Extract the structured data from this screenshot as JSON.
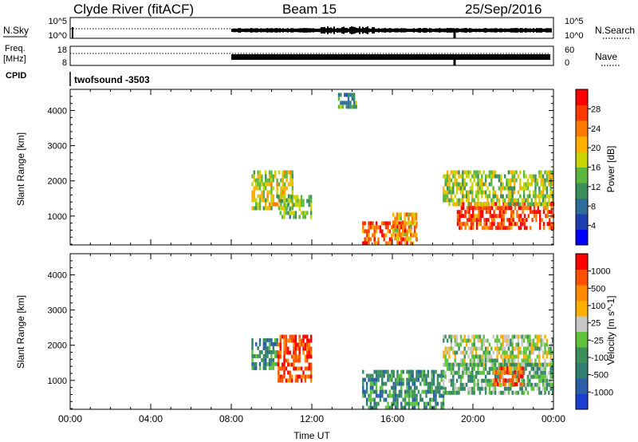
{
  "header": {
    "station": "Clyde River (fitACF)",
    "beam": "Beam 15",
    "date": "25/Sep/2016"
  },
  "status_panels": {
    "nsky_label": "N.Sky",
    "nsky_top_tick": "10^5",
    "nsky_bottom_tick": "10^0",
    "nsearch_label": "N.Search",
    "nsearch_top_tick": "10^5",
    "nsearch_bottom_tick": "10^0",
    "freq_label_line1": "Freq.",
    "freq_label_line2": "[MHz]",
    "freq_top_tick": "18",
    "freq_bottom_tick": "8",
    "nave_label": "Nave",
    "nave_top_tick": "60",
    "nave_bottom_tick": "0",
    "cpid_label": "CPID",
    "cpid_value": "twofsound  -3503"
  },
  "colors": {
    "power_scale": [
      "#0000ff",
      "#1f3fb0",
      "#2f6e9a",
      "#3a8f5a",
      "#5cb83c",
      "#c8d400",
      "#ffb000",
      "#ff7a00",
      "#ff3a00",
      "#ff0000"
    ],
    "velocity_scale": [
      "#1a3fd0",
      "#2a5fa8",
      "#2f7e70",
      "#3a8f5a",
      "#5ec23a",
      "#c8c8c8",
      "#ffb000",
      "#ff8a00",
      "#ff5000",
      "#ff0000"
    ]
  },
  "chart_data": [
    {
      "name": "power",
      "type": "heatmap",
      "title": "",
      "xlabel": "",
      "ylabel": "Slant Range [km]",
      "x_ticks": [
        "00:00",
        "04:00",
        "08:00",
        "12:00",
        "16:00",
        "20:00",
        "00:00"
      ],
      "xlim_hours": [
        0,
        24
      ],
      "ylim": [
        180,
        4600
      ],
      "y_ticks": [
        "1000",
        "2000",
        "3000",
        "4000"
      ],
      "colorbar": {
        "label": "Power [dB]",
        "ticks": [
          "4",
          "8",
          "12",
          "16",
          "20",
          "24",
          "28"
        ]
      },
      "regions": [
        {
          "t0": 9.0,
          "t1": 11.0,
          "r0": 1200,
          "r1": 2300,
          "level": 0.55
        },
        {
          "t0": 10.3,
          "t1": 12.0,
          "r0": 1000,
          "r1": 1600,
          "level": 0.45
        },
        {
          "t0": 14.5,
          "t1": 17.2,
          "r0": 250,
          "r1": 850,
          "level": 0.8
        },
        {
          "t0": 16.0,
          "t1": 17.2,
          "r0": 400,
          "r1": 1100,
          "level": 0.65
        },
        {
          "t0": 19.2,
          "t1": 24.0,
          "r0": 700,
          "r1": 1400,
          "level": 0.85
        },
        {
          "t0": 18.5,
          "t1": 24.0,
          "r0": 1300,
          "r1": 2300,
          "level": 0.5
        },
        {
          "t0": 13.3,
          "t1": 14.2,
          "r0": 4100,
          "r1": 4500,
          "level": 0.35
        }
      ]
    },
    {
      "name": "velocity",
      "type": "heatmap",
      "title": "",
      "xlabel": "Time UT",
      "ylabel": "Slant Range [km]",
      "x_ticks": [
        "00:00",
        "04:00",
        "08:00",
        "12:00",
        "16:00",
        "20:00",
        "00:00"
      ],
      "xlim_hours": [
        0,
        24
      ],
      "ylim": [
        180,
        4600
      ],
      "y_ticks": [
        "1000",
        "2000",
        "3000",
        "4000"
      ],
      "colorbar": {
        "label": "Velocity  [m s^-1]",
        "ticks": [
          "1000",
          "500",
          "100",
          "25",
          "-25",
          "-100",
          "-500",
          "-1000"
        ]
      },
      "regions": [
        {
          "t0": 9.0,
          "t1": 10.3,
          "r0": 1300,
          "r1": 2200,
          "level": 0.3
        },
        {
          "t0": 10.3,
          "t1": 12.0,
          "r0": 1000,
          "r1": 2300,
          "level": 0.88
        },
        {
          "t0": 14.5,
          "t1": 18.5,
          "r0": 250,
          "r1": 1300,
          "level": 0.3
        },
        {
          "t0": 18.5,
          "t1": 24.0,
          "r0": 1500,
          "r1": 2300,
          "level": 0.52
        },
        {
          "t0": 18.5,
          "t1": 24.0,
          "r0": 700,
          "r1": 1500,
          "level": 0.38
        },
        {
          "t0": 21.0,
          "t1": 22.5,
          "r0": 900,
          "r1": 1400,
          "level": 0.78
        }
      ]
    }
  ]
}
